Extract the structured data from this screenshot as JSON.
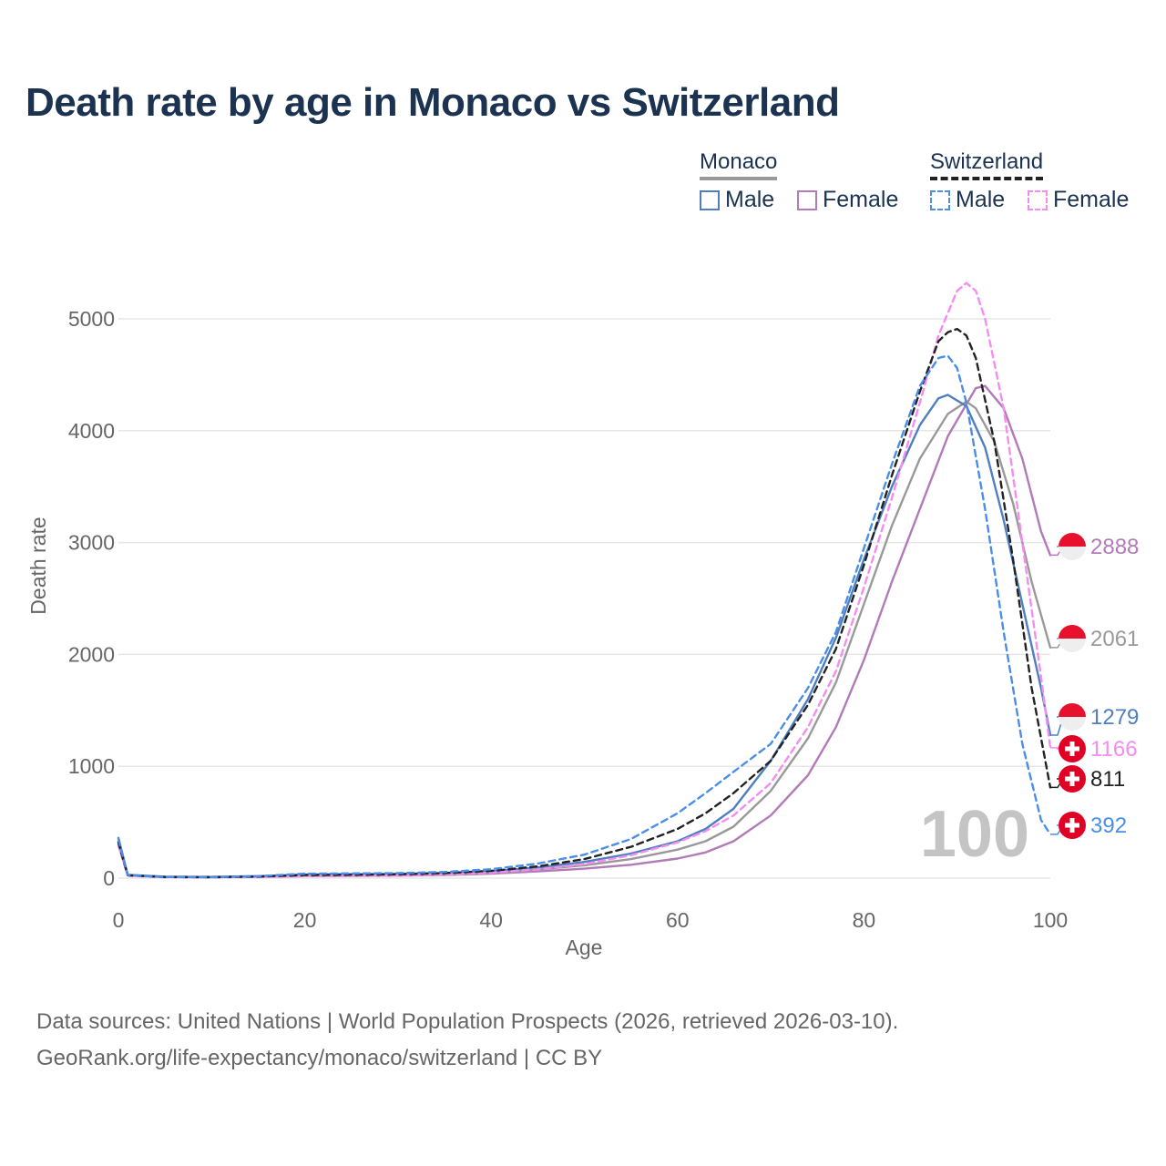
{
  "title": "Death rate by age in Monaco vs Switzerland",
  "legend": {
    "group1": {
      "title": "Monaco",
      "male": "Male",
      "female": "Female"
    },
    "group2": {
      "title": "Switzerland",
      "male": "Male",
      "female": "Female"
    }
  },
  "year_label": "100",
  "source_line1": "Data sources: United Nations | World Population Prospects (2026, retrieved 2026-03-10).",
  "source_line2": "GeoRank.org/life-expectancy/monaco/switzerland | CC BY",
  "colors": {
    "monaco_male": "#4f7fc0",
    "monaco_female": "#b27ab8",
    "monaco_total": "#999999",
    "switzerland_male": "#4a8ee8",
    "switzerland_female": "#f58cf0",
    "switzerland_total": "#222222",
    "monaco_flag": "#e8112d",
    "swiss_flag": "#e00025"
  },
  "chart_data": {
    "type": "line",
    "xlabel": "Age",
    "ylabel": "Death rate",
    "xlim": [
      0,
      100
    ],
    "ylim": [
      0,
      5000
    ],
    "x_ticks": [
      "0",
      "20",
      "40",
      "60",
      "80",
      "100"
    ],
    "y_ticks": [
      "0",
      "1000",
      "2000",
      "3000",
      "4000",
      "5000"
    ],
    "series": [
      {
        "name": "Monaco Female",
        "key": "monaco_female",
        "dashed": false,
        "end_label": "2888",
        "flag": "monaco",
        "points": [
          [
            0,
            300
          ],
          [
            1,
            25
          ],
          [
            5,
            12
          ],
          [
            10,
            10
          ],
          [
            15,
            12
          ],
          [
            20,
            18
          ],
          [
            25,
            20
          ],
          [
            30,
            22
          ],
          [
            35,
            28
          ],
          [
            40,
            40
          ],
          [
            45,
            60
          ],
          [
            50,
            85
          ],
          [
            55,
            120
          ],
          [
            60,
            175
          ],
          [
            63,
            230
          ],
          [
            66,
            330
          ],
          [
            70,
            560
          ],
          [
            74,
            920
          ],
          [
            77,
            1350
          ],
          [
            80,
            1950
          ],
          [
            83,
            2650
          ],
          [
            86,
            3300
          ],
          [
            89,
            3950
          ],
          [
            92,
            4380
          ],
          [
            93,
            4400
          ],
          [
            95,
            4200
          ],
          [
            97,
            3750
          ],
          [
            99,
            3100
          ],
          [
            100,
            2888
          ]
        ]
      },
      {
        "name": "Monaco Total",
        "key": "monaco_total",
        "dashed": false,
        "end_label": "2061",
        "flag": "monaco",
        "points": [
          [
            0,
            330
          ],
          [
            1,
            28
          ],
          [
            5,
            12
          ],
          [
            10,
            10
          ],
          [
            15,
            15
          ],
          [
            20,
            25
          ],
          [
            25,
            28
          ],
          [
            30,
            30
          ],
          [
            35,
            36
          ],
          [
            40,
            50
          ],
          [
            45,
            78
          ],
          [
            50,
            115
          ],
          [
            55,
            170
          ],
          [
            60,
            255
          ],
          [
            63,
            330
          ],
          [
            66,
            460
          ],
          [
            70,
            780
          ],
          [
            74,
            1250
          ],
          [
            77,
            1750
          ],
          [
            80,
            2450
          ],
          [
            83,
            3150
          ],
          [
            86,
            3750
          ],
          [
            89,
            4150
          ],
          [
            91,
            4260
          ],
          [
            92,
            4200
          ],
          [
            94,
            3900
          ],
          [
            96,
            3350
          ],
          [
            98,
            2650
          ],
          [
            100,
            2061
          ]
        ]
      },
      {
        "name": "Monaco Male",
        "key": "monaco_male",
        "dashed": false,
        "end_label": "1279",
        "flag": "monaco",
        "points": [
          [
            0,
            360
          ],
          [
            1,
            30
          ],
          [
            5,
            12
          ],
          [
            10,
            11
          ],
          [
            15,
            18
          ],
          [
            20,
            32
          ],
          [
            25,
            35
          ],
          [
            30,
            38
          ],
          [
            35,
            45
          ],
          [
            40,
            60
          ],
          [
            45,
            95
          ],
          [
            50,
            145
          ],
          [
            55,
            220
          ],
          [
            60,
            330
          ],
          [
            63,
            440
          ],
          [
            66,
            620
          ],
          [
            70,
            1050
          ],
          [
            74,
            1600
          ],
          [
            77,
            2150
          ],
          [
            80,
            2850
          ],
          [
            83,
            3500
          ],
          [
            86,
            4050
          ],
          [
            88,
            4290
          ],
          [
            89,
            4320
          ],
          [
            91,
            4220
          ],
          [
            93,
            3850
          ],
          [
            95,
            3200
          ],
          [
            97,
            2450
          ],
          [
            99,
            1700
          ],
          [
            100,
            1279
          ]
        ]
      },
      {
        "name": "Switzerland Female",
        "key": "switzerland_female",
        "dashed": true,
        "end_label": "1166",
        "flag": "swiss",
        "points": [
          [
            0,
            290
          ],
          [
            1,
            22
          ],
          [
            5,
            8
          ],
          [
            10,
            7
          ],
          [
            15,
            10
          ],
          [
            20,
            18
          ],
          [
            25,
            20
          ],
          [
            30,
            24
          ],
          [
            35,
            32
          ],
          [
            40,
            48
          ],
          [
            45,
            78
          ],
          [
            50,
            125
          ],
          [
            55,
            205
          ],
          [
            60,
            320
          ],
          [
            63,
            420
          ],
          [
            66,
            560
          ],
          [
            70,
            850
          ],
          [
            74,
            1350
          ],
          [
            77,
            1850
          ],
          [
            80,
            2600
          ],
          [
            83,
            3400
          ],
          [
            86,
            4250
          ],
          [
            88,
            4850
          ],
          [
            90,
            5250
          ],
          [
            91,
            5320
          ],
          [
            92,
            5250
          ],
          [
            93,
            5000
          ],
          [
            95,
            4200
          ],
          [
            97,
            3000
          ],
          [
            99,
            1800
          ],
          [
            100,
            1166
          ]
        ]
      },
      {
        "name": "Switzerland Total",
        "key": "switzerland_total",
        "dashed": true,
        "end_label": "811",
        "flag": "swiss",
        "points": [
          [
            0,
            320
          ],
          [
            1,
            25
          ],
          [
            5,
            10
          ],
          [
            10,
            8
          ],
          [
            15,
            14
          ],
          [
            20,
            28
          ],
          [
            25,
            30
          ],
          [
            30,
            34
          ],
          [
            35,
            45
          ],
          [
            40,
            65
          ],
          [
            45,
            105
          ],
          [
            50,
            170
          ],
          [
            55,
            280
          ],
          [
            60,
            440
          ],
          [
            63,
            580
          ],
          [
            66,
            760
          ],
          [
            70,
            1050
          ],
          [
            74,
            1550
          ],
          [
            77,
            2050
          ],
          [
            80,
            2800
          ],
          [
            83,
            3600
          ],
          [
            86,
            4350
          ],
          [
            88,
            4800
          ],
          [
            89,
            4880
          ],
          [
            90,
            4910
          ],
          [
            91,
            4850
          ],
          [
            92,
            4650
          ],
          [
            94,
            3900
          ],
          [
            96,
            2850
          ],
          [
            98,
            1700
          ],
          [
            100,
            811
          ]
        ]
      },
      {
        "name": "Switzerland Male",
        "key": "switzerland_male",
        "dashed": true,
        "end_label": "392",
        "flag": "swiss",
        "points": [
          [
            0,
            350
          ],
          [
            1,
            28
          ],
          [
            5,
            10
          ],
          [
            10,
            9
          ],
          [
            15,
            18
          ],
          [
            20,
            40
          ],
          [
            25,
            42
          ],
          [
            30,
            45
          ],
          [
            35,
            55
          ],
          [
            40,
            80
          ],
          [
            45,
            130
          ],
          [
            50,
            210
          ],
          [
            55,
            350
          ],
          [
            60,
            580
          ],
          [
            63,
            760
          ],
          [
            66,
            950
          ],
          [
            70,
            1200
          ],
          [
            74,
            1700
          ],
          [
            77,
            2200
          ],
          [
            80,
            2950
          ],
          [
            83,
            3700
          ],
          [
            86,
            4400
          ],
          [
            88,
            4650
          ],
          [
            89,
            4670
          ],
          [
            90,
            4560
          ],
          [
            91,
            4250
          ],
          [
            93,
            3300
          ],
          [
            95,
            2200
          ],
          [
            97,
            1200
          ],
          [
            99,
            520
          ],
          [
            100,
            392
          ]
        ]
      }
    ]
  }
}
